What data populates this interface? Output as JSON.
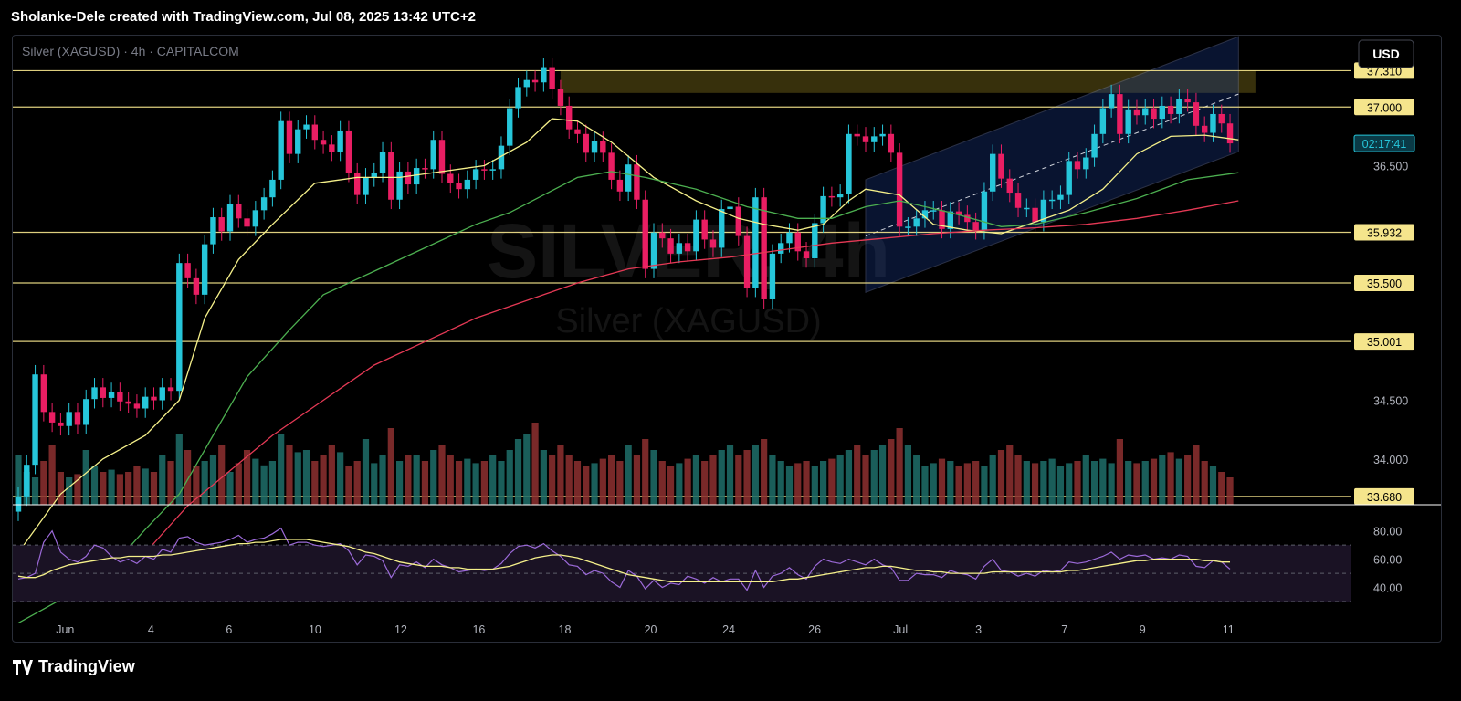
{
  "header": {
    "attribution": "Sholanke-Dele created with TradingView.com, Jul 08, 2025 13:42 UTC+2"
  },
  "footer": {
    "brand": "TradingView"
  },
  "currency_button": "USD",
  "colors": {
    "up": "#26c6da",
    "down": "#e91e63",
    "ma_fast": "#f5f08a",
    "ma_mid": "#4caf50",
    "ma_slow": "#e53955",
    "level": "#f5e58c",
    "rsi": "#9c6ad9",
    "rsi_ma": "#f5f08a",
    "channel": "#1a3a8a",
    "volume_up": "#1e6e6a",
    "volume_down": "#8e3030"
  },
  "chart_data": {
    "type": "candlestick",
    "title": "Silver (XAGUSD) · 4h · CAPITALCOM",
    "watermark": {
      "symbol": "SILVER, 4h",
      "name": "Silver (XAGUSD)"
    },
    "x_ticks": [
      "Jun",
      "4",
      "6",
      "10",
      "12",
      "16",
      "18",
      "20",
      "24",
      "26",
      "Jul",
      "3",
      "7",
      "9",
      "11"
    ],
    "y_ticks": [
      "36.500",
      "35.500",
      "34.500",
      "34.000"
    ],
    "ylim": [
      33.5,
      37.5
    ],
    "price_labels": [
      {
        "text": "37.310",
        "value": 37.31
      },
      {
        "text": "37.000",
        "value": 37.0
      },
      {
        "text": "35.932",
        "value": 35.932
      },
      {
        "text": "35.500",
        "value": 35.5
      },
      {
        "text": "35.001",
        "value": 35.001
      },
      {
        "text": "33.680",
        "value": 33.68
      }
    ],
    "countdown": "02:17:41",
    "countdown_value": 36.69,
    "rsi_ticks": [
      "80.00",
      "60.00",
      "40.00"
    ],
    "rsi_ylim": [
      30,
      85
    ],
    "ohlc": {
      "open": [
        33.55,
        33.68,
        33.95,
        34.72,
        34.4,
        34.31,
        34.28,
        34.4,
        34.29,
        34.51,
        34.61,
        34.52,
        34.57,
        34.49,
        34.47,
        34.43,
        34.53,
        34.5,
        34.61,
        34.58,
        35.67,
        35.54,
        35.4,
        35.83,
        36.06,
        35.94,
        36.17,
        36.05,
        35.98,
        36.12,
        36.23,
        36.38,
        36.88,
        36.6,
        36.81,
        36.85,
        36.72,
        36.68,
        36.62,
        36.8,
        36.44,
        36.25,
        36.4,
        36.44,
        36.62,
        36.21,
        36.45,
        36.34,
        36.48,
        36.47,
        36.72,
        36.43,
        36.35,
        36.3,
        36.38,
        36.47,
        36.46,
        36.47,
        36.67,
        36.99,
        37.17,
        37.23,
        37.21,
        37.34,
        37.15,
        37.01,
        36.81,
        36.77,
        36.61,
        36.71,
        36.61,
        36.38,
        36.28,
        36.51,
        36.21,
        35.62,
        35.93,
        35.88,
        35.75,
        35.84,
        35.77,
        36.04,
        35.87,
        35.8,
        36.13,
        36.15,
        35.9,
        35.46,
        36.23,
        35.36,
        35.75,
        35.84,
        35.93,
        35.77,
        35.71,
        36.01,
        36.24,
        36.23,
        36.26,
        36.77,
        36.75,
        36.7,
        36.75,
        36.77,
        36.61,
        35.98,
        35.98,
        36.05,
        36.12,
        36.12,
        35.96,
        36.11,
        36.08,
        36.02,
        35.95,
        36.28,
        36.6,
        36.39,
        36.27,
        36.14,
        36.14,
        36.02,
        36.21,
        36.21,
        36.25,
        36.54,
        36.47,
        36.57,
        36.77,
        36.99,
        37.11,
        36.77,
        36.98,
        36.93,
        36.99,
        36.9,
        37.01,
        36.94,
        37.07,
        37.04,
        36.84,
        36.78,
        36.94,
        36.86
      ],
      "close": [
        33.68,
        33.95,
        34.72,
        34.4,
        34.31,
        34.28,
        34.4,
        34.29,
        34.51,
        34.61,
        34.52,
        34.57,
        34.49,
        34.47,
        34.43,
        34.53,
        34.5,
        34.61,
        34.58,
        35.67,
        35.54,
        35.4,
        35.83,
        36.06,
        35.94,
        36.17,
        36.05,
        35.98,
        36.12,
        36.23,
        36.38,
        36.88,
        36.6,
        36.81,
        36.85,
        36.72,
        36.68,
        36.62,
        36.8,
        36.44,
        36.25,
        36.4,
        36.44,
        36.62,
        36.21,
        36.45,
        36.34,
        36.48,
        36.47,
        36.72,
        36.43,
        36.35,
        36.3,
        36.38,
        36.47,
        36.46,
        36.47,
        36.67,
        36.99,
        37.17,
        37.23,
        37.21,
        37.34,
        37.15,
        37.01,
        36.81,
        36.77,
        36.61,
        36.71,
        36.61,
        36.38,
        36.28,
        36.51,
        36.21,
        35.62,
        35.93,
        35.88,
        35.75,
        35.84,
        35.77,
        36.04,
        35.87,
        35.8,
        36.13,
        36.15,
        35.9,
        35.46,
        36.23,
        35.36,
        35.75,
        35.84,
        35.93,
        35.77,
        35.71,
        36.01,
        36.24,
        36.23,
        36.26,
        36.77,
        36.75,
        36.7,
        36.75,
        36.77,
        36.61,
        35.98,
        35.98,
        36.05,
        36.12,
        36.12,
        35.96,
        36.11,
        36.08,
        36.02,
        35.95,
        36.28,
        36.6,
        36.39,
        36.27,
        36.14,
        36.14,
        36.02,
        36.21,
        36.21,
        36.25,
        36.54,
        36.47,
        36.57,
        36.77,
        36.99,
        37.11,
        36.77,
        36.98,
        36.93,
        36.99,
        36.9,
        37.01,
        36.94,
        37.07,
        37.04,
        36.84,
        36.78,
        36.94,
        36.86,
        36.69
      ],
      "volume": [
        0.45,
        0.3,
        0.25,
        0.4,
        0.55,
        0.3,
        0.25,
        0.28,
        0.5,
        0.35,
        0.3,
        0.32,
        0.28,
        0.3,
        0.35,
        0.33,
        0.3,
        0.45,
        0.4,
        0.65,
        0.5,
        0.35,
        0.4,
        0.45,
        0.55,
        0.3,
        0.38,
        0.5,
        0.42,
        0.36,
        0.4,
        0.65,
        0.55,
        0.48,
        0.5,
        0.4,
        0.45,
        0.55,
        0.48,
        0.35,
        0.4,
        0.6,
        0.38,
        0.45,
        0.7,
        0.4,
        0.45,
        0.45,
        0.4,
        0.5,
        0.55,
        0.45,
        0.4,
        0.42,
        0.38,
        0.4,
        0.45,
        0.4,
        0.5,
        0.6,
        0.65,
        0.75,
        0.5,
        0.45,
        0.55,
        0.45,
        0.4,
        0.35,
        0.38,
        0.42,
        0.45,
        0.4,
        0.55,
        0.45,
        0.6,
        0.5,
        0.4,
        0.35,
        0.38,
        0.42,
        0.45,
        0.4,
        0.45,
        0.5,
        0.55,
        0.45,
        0.5,
        0.55,
        0.6,
        0.45,
        0.4,
        0.35,
        0.38,
        0.4,
        0.35,
        0.4,
        0.42,
        0.45,
        0.5,
        0.55,
        0.45,
        0.5,
        0.55,
        0.6,
        0.7,
        0.55,
        0.45,
        0.35,
        0.38,
        0.42,
        0.4,
        0.35,
        0.38,
        0.4,
        0.35,
        0.45,
        0.5,
        0.55,
        0.45,
        0.4,
        0.38,
        0.4,
        0.42,
        0.35,
        0.38,
        0.4,
        0.45,
        0.4,
        0.42,
        0.38,
        0.6,
        0.4,
        0.38,
        0.4,
        0.42,
        0.45,
        0.48,
        0.42,
        0.45,
        0.55,
        0.4,
        0.35,
        0.3,
        0.25
      ]
    },
    "moving_averages": [
      {
        "points": [
          [
            0,
            33.2
          ],
          [
            5,
            33.7
          ],
          [
            10,
            34.0
          ],
          [
            15,
            34.2
          ],
          [
            19,
            34.5
          ],
          [
            22,
            35.2
          ],
          [
            26,
            35.7
          ],
          [
            30,
            36.0
          ],
          [
            35,
            36.35
          ],
          [
            40,
            36.4
          ],
          [
            45,
            36.4
          ],
          [
            50,
            36.45
          ],
          [
            55,
            36.5
          ],
          [
            60,
            36.7
          ],
          [
            63,
            36.9
          ],
          [
            66,
            36.88
          ],
          [
            70,
            36.7
          ],
          [
            75,
            36.4
          ],
          [
            80,
            36.2
          ],
          [
            85,
            36.05
          ],
          [
            88,
            36.0
          ],
          [
            92,
            35.95
          ],
          [
            95,
            36.0
          ],
          [
            98,
            36.2
          ],
          [
            100,
            36.3
          ],
          [
            104,
            36.25
          ],
          [
            108,
            36.0
          ],
          [
            112,
            35.95
          ],
          [
            116,
            35.92
          ],
          [
            120,
            36.02
          ],
          [
            124,
            36.12
          ],
          [
            128,
            36.3
          ],
          [
            132,
            36.6
          ],
          [
            136,
            36.75
          ],
          [
            140,
            36.76
          ],
          [
            144,
            36.72
          ]
        ]
      },
      {
        "points": [
          [
            0,
            32.6
          ],
          [
            10,
            33.0
          ],
          [
            15,
            33.4
          ],
          [
            19,
            33.7
          ],
          [
            23,
            34.2
          ],
          [
            27,
            34.7
          ],
          [
            32,
            35.1
          ],
          [
            36,
            35.4
          ],
          [
            42,
            35.6
          ],
          [
            48,
            35.8
          ],
          [
            54,
            36.0
          ],
          [
            58,
            36.1
          ],
          [
            62,
            36.25
          ],
          [
            66,
            36.4
          ],
          [
            70,
            36.45
          ],
          [
            74,
            36.4
          ],
          [
            80,
            36.3
          ],
          [
            86,
            36.15
          ],
          [
            92,
            36.05
          ],
          [
            96,
            36.05
          ],
          [
            100,
            36.15
          ],
          [
            104,
            36.2
          ],
          [
            110,
            36.1
          ],
          [
            116,
            35.98
          ],
          [
            120,
            36.0
          ],
          [
            126,
            36.1
          ],
          [
            132,
            36.22
          ],
          [
            138,
            36.38
          ],
          [
            144,
            36.44
          ]
        ]
      },
      {
        "points": [
          [
            15,
            33.2
          ],
          [
            20,
            33.6
          ],
          [
            25,
            33.9
          ],
          [
            30,
            34.2
          ],
          [
            36,
            34.5
          ],
          [
            42,
            34.8
          ],
          [
            48,
            35.0
          ],
          [
            54,
            35.2
          ],
          [
            60,
            35.35
          ],
          [
            66,
            35.5
          ],
          [
            72,
            35.62
          ],
          [
            78,
            35.68
          ],
          [
            84,
            35.72
          ],
          [
            90,
            35.78
          ],
          [
            96,
            35.84
          ],
          [
            102,
            35.88
          ],
          [
            108,
            35.92
          ],
          [
            114,
            35.95
          ],
          [
            120,
            35.97
          ],
          [
            126,
            36.0
          ],
          [
            132,
            36.05
          ],
          [
            138,
            36.12
          ],
          [
            144,
            36.2
          ]
        ]
      }
    ],
    "channel": {
      "x_range": [
        100,
        144
      ],
      "upper": [
        36.38,
        37.6
      ],
      "lower": [
        35.42,
        36.62
      ]
    },
    "supply_zone": {
      "x_range": [
        64,
        146
      ],
      "top": 37.31,
      "bottom": 37.12
    },
    "rsi": [
      46,
      47,
      50,
      72,
      80,
      65,
      60,
      58,
      62,
      70,
      68,
      62,
      58,
      60,
      57,
      62,
      60,
      67,
      65,
      75,
      76,
      72,
      70,
      71,
      72,
      74,
      77,
      72,
      74,
      75,
      78,
      82,
      70,
      72,
      72,
      70,
      69,
      70,
      71,
      66,
      56,
      63,
      62,
      59,
      47,
      56,
      55,
      58,
      54,
      60,
      56,
      54,
      51,
      52,
      53,
      52,
      53,
      57,
      64,
      69,
      70,
      68,
      71,
      66,
      62,
      56,
      55,
      49,
      52,
      50,
      44,
      40,
      52,
      48,
      39,
      45,
      40,
      43,
      42,
      48,
      46,
      43,
      47,
      44,
      46,
      46,
      38,
      52,
      40,
      48,
      50,
      54,
      49,
      46,
      55,
      60,
      58,
      57,
      60,
      58,
      56,
      60,
      56,
      54,
      45,
      45,
      50,
      49,
      49,
      47,
      52,
      50,
      49,
      46,
      55,
      60,
      52,
      51,
      48,
      50,
      48,
      52,
      51,
      52,
      58,
      57,
      58,
      60,
      62,
      65,
      60,
      63,
      62,
      63,
      60,
      61,
      60,
      63,
      62,
      55,
      54,
      59,
      58,
      53
    ],
    "rsi_ma": [
      48,
      47,
      47,
      49,
      52,
      54,
      56,
      57,
      58,
      59,
      60,
      61,
      61,
      62,
      62,
      62,
      62,
      63,
      63,
      64,
      65,
      66,
      67,
      68,
      69,
      70,
      71,
      71,
      72,
      72,
      73,
      74,
      74,
      74,
      74,
      73,
      72,
      71,
      70,
      69,
      67,
      65,
      64,
      62,
      60,
      58,
      57,
      56,
      55,
      55,
      55,
      54,
      54,
      53,
      53,
      53,
      53,
      54,
      55,
      57,
      59,
      61,
      62,
      63,
      63,
      62,
      61,
      59,
      57,
      55,
      53,
      51,
      49,
      48,
      47,
      46,
      45,
      44,
      44,
      44,
      44,
      44,
      44,
      44,
      44,
      44,
      44,
      44,
      44,
      44,
      45,
      46,
      46,
      47,
      48,
      49,
      50,
      51,
      52,
      53,
      54,
      54,
      55,
      55,
      54,
      53,
      52,
      52,
      51,
      51,
      50,
      50,
      50,
      50,
      50,
      51,
      51,
      51,
      51,
      51,
      51,
      51,
      51,
      51,
      52,
      52,
      53,
      54,
      55,
      56,
      57,
      58,
      59,
      59,
      60,
      60,
      60,
      60,
      60,
      60,
      59,
      59,
      58,
      58
    ]
  }
}
